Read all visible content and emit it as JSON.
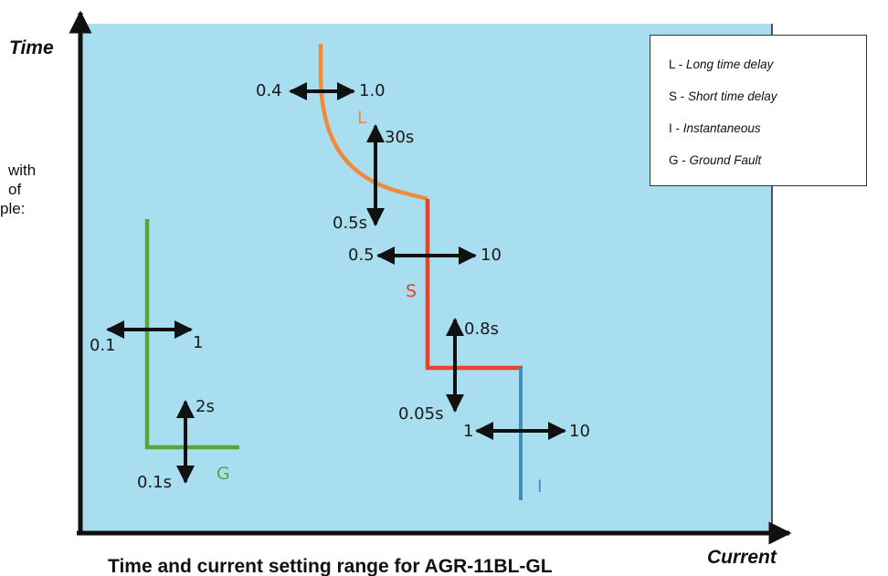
{
  "axes": {
    "y_title": "Time",
    "x_title": "Current"
  },
  "caption": "Time and current setting range for  AGR-11BL-GL",
  "side_text": [
    "with",
    "of",
    "ple:"
  ],
  "legend": [
    {
      "code": "L",
      "sep": " - ",
      "desc": "Long time delay"
    },
    {
      "code": "S",
      "sep": " - ",
      "desc": "Short time delay"
    },
    {
      "code": "I",
      "sep": " - ",
      "desc": "Instantaneous"
    },
    {
      "code": "G",
      "sep": " - ",
      "desc": "Ground Fault"
    }
  ],
  "curves": {
    "L": {
      "letter": "L",
      "color": "#f08a3c",
      "current_range": [
        "0.4",
        "1.0"
      ],
      "time_range": [
        "0.5s",
        "30s"
      ]
    },
    "S": {
      "letter": "S",
      "color": "#e8432a",
      "current_range": [
        "0.5",
        "10"
      ],
      "time_range": [
        "0.05s",
        "0.8s"
      ]
    },
    "I": {
      "letter": "I",
      "color": "#3d8fbf",
      "current_range": [
        "1",
        "10"
      ]
    },
    "G": {
      "letter": "G",
      "color": "#5aa53a",
      "current_range": [
        "0.1",
        "1"
      ],
      "time_range": [
        "0.1s",
        "2s"
      ]
    }
  },
  "colors": {
    "plot_background": "#a9def0",
    "axis": "#111111",
    "arrow": "#111111"
  }
}
